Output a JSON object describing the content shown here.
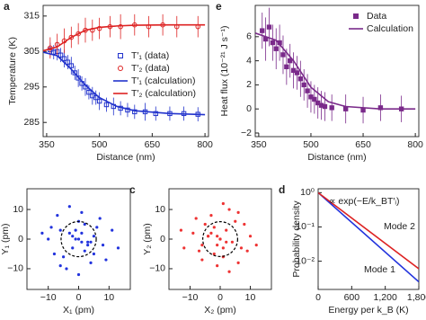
{
  "chart_data": [
    {
      "type": "line",
      "panel": "a",
      "xlabel": "Distance (nm)",
      "ylabel": "Temperature (K)",
      "xlim": [
        340,
        810
      ],
      "xticks": [
        350,
        500,
        650,
        800
      ],
      "ylim": [
        281,
        318
      ],
      "yticks": [
        285,
        295,
        305,
        315
      ],
      "legend": true,
      "series": [
        {
          "name": "T′₁ (data)",
          "color": "#2233cc",
          "mode": "markers",
          "marker": "square",
          "x": [
            360,
            370,
            380,
            390,
            400,
            410,
            420,
            430,
            440,
            450,
            460,
            470,
            480,
            490,
            500,
            520,
            540,
            560,
            580,
            600,
            630,
            660,
            700,
            740,
            780
          ],
          "values": [
            305.5,
            304.8,
            305,
            304,
            303,
            302,
            301,
            299,
            297.5,
            296,
            295,
            293.5,
            292.5,
            292,
            291,
            290,
            289.5,
            289,
            288.5,
            288,
            288,
            287.5,
            287.5,
            287.5,
            287.3
          ],
          "errors": [
            2,
            2,
            2.5,
            2,
            2.5,
            2,
            2.5,
            2,
            2.5,
            2,
            2.5,
            2,
            2.5,
            2,
            2.5,
            2,
            2.5,
            2,
            2,
            2,
            2.5,
            2,
            2,
            2,
            2
          ]
        },
        {
          "name": "T′₂ (data)",
          "color": "#dd2222",
          "mode": "markers",
          "marker": "circle",
          "x": [
            360,
            380,
            400,
            420,
            440,
            460,
            480,
            500,
            530,
            560,
            600,
            640,
            680,
            720,
            780
          ],
          "values": [
            306,
            307,
            308,
            309,
            310,
            311,
            311,
            311.5,
            312,
            312,
            312.5,
            312,
            312.5,
            312,
            312
          ],
          "errors": [
            3,
            3,
            3.5,
            3,
            3,
            3.5,
            3,
            3,
            3,
            3.5,
            3,
            3,
            3,
            3,
            3
          ]
        },
        {
          "name": "T′₁ (calculation)",
          "color": "#2233cc",
          "mode": "line",
          "x": [
            340,
            380,
            420,
            460,
            500,
            550,
            600,
            700,
            800
          ],
          "values": [
            304.8,
            303.8,
            300,
            295.5,
            292,
            289.5,
            288.3,
            287.5,
            287.2
          ]
        },
        {
          "name": "T′₂ (calculation)",
          "color": "#dd2222",
          "mode": "line",
          "x": [
            340,
            380,
            420,
            460,
            500,
            550,
            600,
            700,
            800
          ],
          "values": [
            305.2,
            306.3,
            309,
            311,
            311.8,
            312.2,
            312.4,
            312.5,
            312.5
          ]
        }
      ]
    },
    {
      "type": "line",
      "panel": "e",
      "xlabel": "Distance (nm)",
      "ylabel": "Heat flux (10⁻²¹ J s⁻¹)",
      "xlim": [
        340,
        810
      ],
      "xticks": [
        350,
        500,
        650,
        800
      ],
      "ylim": [
        -2.3,
        8.6
      ],
      "yticks": [
        {
          "value": -2,
          "label": "−2"
        },
        0,
        2,
        4,
        6
      ],
      "legend": true,
      "series": [
        {
          "name": "Data",
          "color": "#7a2a8a",
          "mode": "markers",
          "marker": "square",
          "x": [
            360,
            370,
            380,
            390,
            400,
            410,
            420,
            430,
            440,
            450,
            460,
            470,
            480,
            490,
            500,
            510,
            520,
            530,
            540,
            560,
            600,
            650,
            700,
            760
          ],
          "values": [
            6.5,
            5.8,
            6.8,
            5.5,
            5,
            5.5,
            4.5,
            3.5,
            4,
            3.2,
            3,
            2.5,
            2,
            1.5,
            1,
            0.8,
            0.5,
            0.3,
            0.2,
            0.1,
            0,
            -0.1,
            0.1,
            0
          ],
          "errors": [
            1.5,
            1.8,
            1.6,
            1.5,
            1.7,
            1.5,
            1.6,
            1.5,
            1.4,
            1.5,
            1.4,
            1.5,
            1.3,
            1.4,
            1.3,
            1.2,
            1.3,
            1.2,
            1.2,
            1.1,
            1.2,
            1.1,
            1.1,
            1.1
          ]
        },
        {
          "name": "Calculation",
          "color": "#7a2a8a",
          "mode": "line",
          "x": [
            340,
            400,
            450,
            500,
            550,
            600,
            700,
            800
          ],
          "values": [
            6.3,
            5.7,
            4,
            1.8,
            0.6,
            0.2,
            0,
            0
          ]
        }
      ]
    },
    {
      "type": "scatter",
      "panel": "b",
      "xlabel": "X₁ (pm)",
      "ylabel": "Y₁ (pm)",
      "xlim": [
        -17,
        17
      ],
      "xticks": [
        {
          "value": -10,
          "label": "−10"
        },
        0,
        10
      ],
      "ylim": [
        -17,
        17
      ],
      "yticks": [
        {
          "value": -10,
          "label": "−10"
        },
        0,
        10
      ],
      "series": [
        {
          "color": "#2233dd",
          "x": [
            -3,
            2,
            5,
            -6,
            0,
            8,
            -10,
            4,
            -2,
            1,
            -8,
            6,
            -4,
            3,
            11,
            -1,
            7,
            -5,
            0,
            -12,
            9,
            2,
            -7,
            5,
            -3,
            13,
            -9,
            1,
            4,
            -6,
            0,
            -2,
            3,
            1,
            -1
          ],
          "values": [
            2,
            -4,
            1,
            3,
            6,
            -2,
            0,
            -8,
            -3,
            9,
            -5,
            4,
            -10,
            -1,
            3,
            0,
            7,
            -6,
            -12,
            2,
            -7,
            5,
            8,
            -5,
            11,
            -3,
            4,
            2,
            -1,
            -9,
            0,
            1,
            -2,
            -1,
            3
          ]
        }
      ]
    },
    {
      "type": "scatter",
      "panel": "c",
      "xlabel": "X₂ (pm)",
      "ylabel": "Y₂ (pm)",
      "xlim": [
        -17,
        17
      ],
      "xticks": [
        {
          "value": -10,
          "label": "−10"
        },
        0,
        10
      ],
      "ylim": [
        -17,
        17
      ],
      "yticks": [
        {
          "value": -10,
          "label": "−10"
        },
        0,
        10
      ],
      "series": [
        {
          "color": "#ee3333",
          "x": [
            4,
            -2,
            -6,
            7,
            1,
            -9,
            10,
            -3,
            2,
            -1,
            8,
            -7,
            3,
            -4,
            -12,
            0,
            -6,
            5,
            1,
            12,
            -8,
            -2,
            6,
            -5,
            3,
            -13,
            9,
            -1,
            -4,
            6,
            0,
            2,
            -3,
            -1,
            1
          ],
          "values": [
            -1,
            4,
            -2,
            -3,
            -6,
            2,
            1,
            8,
            3,
            -9,
            5,
            -4,
            10,
            1,
            -3,
            0,
            -7,
            6,
            12,
            -2,
            7,
            -5,
            -8,
            5,
            -11,
            3,
            -4,
            -2,
            1,
            9,
            0,
            -1,
            2,
            1,
            -3
          ]
        }
      ]
    },
    {
      "type": "line",
      "panel": "d",
      "xlabel": "Energy per k_B (K)",
      "ylabel": "Probability density",
      "xlim": [
        0,
        1800
      ],
      "xticks": [
        0,
        600,
        {
          "value": 1200,
          "label": "1,200"
        },
        {
          "value": 1800,
          "label": "1,800"
        }
      ],
      "ylim": [
        0.0015,
        1.3
      ],
      "ylog": true,
      "yticks": [
        {
          "value": 0.01,
          "label": "10⁻²"
        },
        {
          "value": 0.1,
          "label": "10⁻¹"
        },
        {
          "value": 1,
          "label": "10⁰"
        }
      ],
      "series": [
        {
          "name": "Mode 1",
          "color": "#2233dd",
          "mode": "line",
          "x": [
            0,
            1800
          ],
          "values": [
            1,
            0.0025
          ]
        },
        {
          "name": "Mode 2",
          "color": "#dd2222",
          "mode": "line",
          "x": [
            0,
            1800
          ],
          "values": [
            1,
            0.006
          ]
        }
      ],
      "annotations": [
        {
          "text": "∝ exp(−E/k_BT′ᵢ)",
          "color": "#000000"
        },
        {
          "text": "Mode 2",
          "color": "#dd2222"
        },
        {
          "text": "Mode 1",
          "color": "#2233dd"
        }
      ]
    }
  ]
}
